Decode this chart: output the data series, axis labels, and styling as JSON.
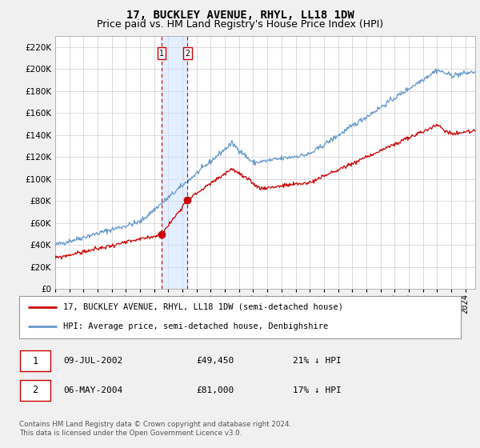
{
  "title": "17, BUCKLEY AVENUE, RHYL, LL18 1DW",
  "subtitle": "Price paid vs. HM Land Registry's House Price Index (HPI)",
  "ylabel_ticks": [
    0,
    20000,
    40000,
    60000,
    80000,
    100000,
    120000,
    140000,
    160000,
    180000,
    200000,
    220000
  ],
  "ylim": [
    0,
    230000
  ],
  "xlim_start": 1995.0,
  "xlim_end": 2024.7,
  "transaction1": {
    "date": 2002.52,
    "price": 49450,
    "label": "1",
    "pct": "21% ↓ HPI",
    "date_str": "09-JUL-2002"
  },
  "transaction2": {
    "date": 2004.35,
    "price": 81000,
    "label": "2",
    "pct": "17% ↓ HPI",
    "date_str": "06-MAY-2004"
  },
  "hpi_line_color": "#6699cc",
  "price_line_color": "#cc0000",
  "vline_color": "#cc0000",
  "shading_color": "#cce0ff",
  "legend_label1": "17, BUCKLEY AVENUE, RHYL, LL18 1DW (semi-detached house)",
  "legend_label2": "HPI: Average price, semi-detached house, Denbighshire",
  "footer": "Contains HM Land Registry data © Crown copyright and database right 2024.\nThis data is licensed under the Open Government Licence v3.0.",
  "background_color": "#f0f0f0",
  "plot_bg_color": "#ffffff",
  "grid_color": "#cccccc",
  "title_fontsize": 10,
  "subtitle_fontsize": 9,
  "tick_fontsize": 7.5
}
